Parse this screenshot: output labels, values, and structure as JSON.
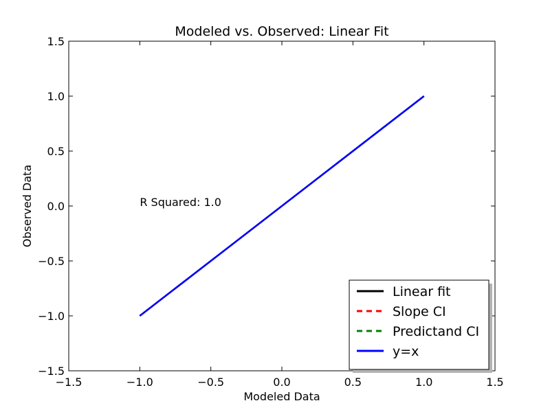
{
  "chart_data": {
    "type": "line",
    "title": "Modeled vs. Observed: Linear Fit",
    "xlabel": "Modeled Data",
    "ylabel": "Observed Data",
    "xlim": [
      -1.5,
      1.5
    ],
    "ylim": [
      -1.5,
      1.5
    ],
    "xticks": [
      -1.5,
      -1.0,
      -0.5,
      0.0,
      0.5,
      1.0,
      1.5
    ],
    "yticks": [
      -1.5,
      -1.0,
      -0.5,
      0.0,
      0.5,
      1.0,
      1.5
    ],
    "xtick_labels": [
      "−1.5",
      "−1.0",
      "−0.5",
      "0.0",
      "0.5",
      "1.0",
      "1.5"
    ],
    "ytick_labels": [
      "−1.5",
      "−1.0",
      "−0.5",
      "0.0",
      "0.5",
      "1.0",
      "1.5"
    ],
    "grid": false,
    "legend_position": "lower-right",
    "annotation": {
      "text": "R Squared: 1.0",
      "x": -1.0,
      "y": 0.0
    },
    "series": [
      {
        "name": "Linear fit",
        "color": "#000000",
        "style": "solid",
        "x": [
          -1.0,
          1.0
        ],
        "y": [
          -1.0,
          1.0
        ]
      },
      {
        "name": "Slope CI",
        "color": "#ff0000",
        "style": "dashed",
        "x": [
          -1.0,
          1.0
        ],
        "y": [
          -1.0,
          1.0
        ]
      },
      {
        "name": "Predictand CI",
        "color": "#008000",
        "style": "dashed",
        "x": [
          -1.0,
          1.0
        ],
        "y": [
          -1.0,
          1.0
        ]
      },
      {
        "name": "y=x",
        "color": "#0000ff",
        "style": "solid",
        "x": [
          -1.0,
          1.0
        ],
        "y": [
          -1.0,
          1.0
        ]
      }
    ]
  }
}
